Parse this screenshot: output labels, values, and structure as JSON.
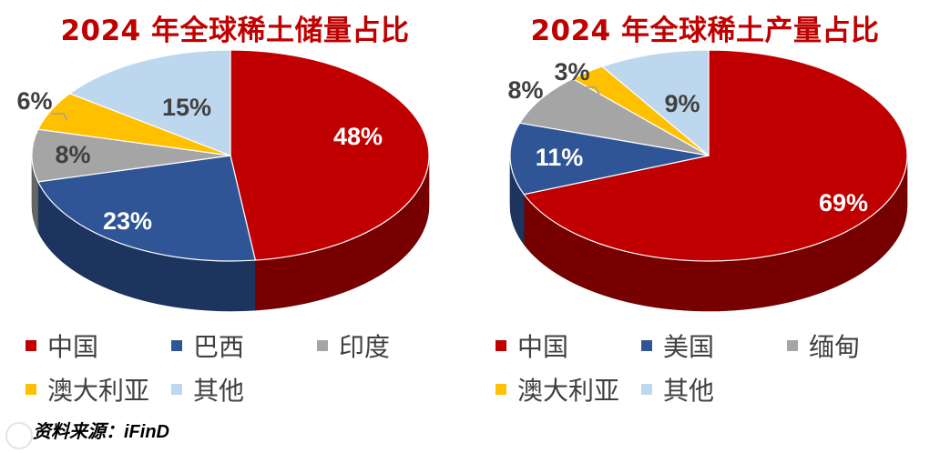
{
  "chart_data": [
    {
      "type": "pie",
      "title": "2024 年全球稀土储量占比",
      "categories": [
        "中国",
        "巴西",
        "印度",
        "澳大利亚",
        "其他"
      ],
      "values": [
        48,
        23,
        8,
        6,
        15
      ],
      "labels": [
        "48%",
        "23%",
        "8%",
        "6%",
        "15%"
      ],
      "colors": [
        "#c00000",
        "#2f5597",
        "#a5a5a5",
        "#ffc000",
        "#bdd7ee"
      ],
      "legend_position": "bottom"
    },
    {
      "type": "pie",
      "title": "2024 年全球稀土产量占比",
      "categories": [
        "中国",
        "美国",
        "缅甸",
        "澳大利亚",
        "其他"
      ],
      "values": [
        69,
        11,
        8,
        3,
        9
      ],
      "labels": [
        "69%",
        "11%",
        "8%",
        "3%",
        "9%"
      ],
      "colors": [
        "#c00000",
        "#2f5597",
        "#a5a5a5",
        "#ffc000",
        "#bdd7ee"
      ],
      "legend_position": "bottom"
    }
  ],
  "source": {
    "label": "资料来源：",
    "name": "iFinD"
  }
}
